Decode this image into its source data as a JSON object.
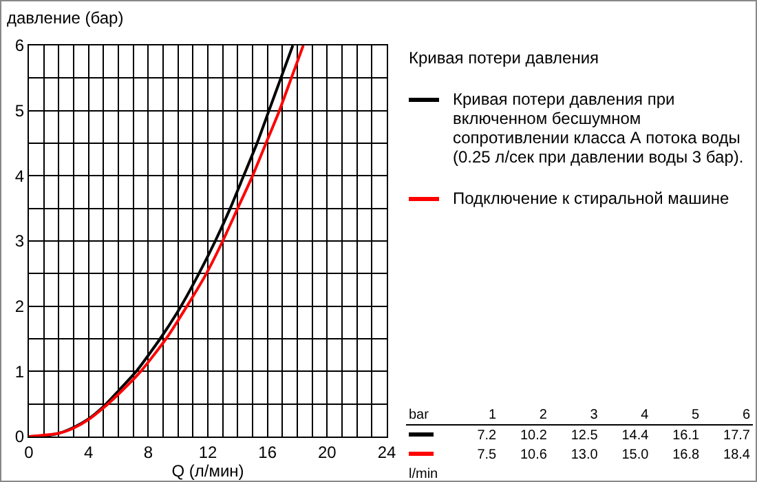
{
  "chart_data": {
    "type": "line",
    "ylabel": "давление (бар)",
    "xlabel": "Q (л/мин)",
    "legend_title": "Кривая потери давления",
    "series": [
      {
        "name": "Кривая потери давления при включенном бесшумном сопротивлении класса А потока воды (0.25 л/сек при давлении воды 3 бар).",
        "color": "#000000",
        "x": [
          0,
          1,
          2,
          3,
          4,
          5,
          6,
          7.2,
          8.8,
          10.2,
          11.4,
          12.5,
          13.5,
          14.4,
          15.3,
          16.1,
          16.9,
          17.7
        ],
        "values": [
          0,
          0.01,
          0.05,
          0.14,
          0.27,
          0.46,
          0.7,
          1,
          1.5,
          2,
          2.5,
          3,
          3.5,
          4,
          4.5,
          5,
          5.5,
          6
        ]
      },
      {
        "name": "Подключение к стиральной машине",
        "color": "#ff0000",
        "x": [
          0,
          2,
          3,
          4,
          5,
          6,
          7.5,
          9.2,
          10.6,
          11.9,
          13.0,
          14.0,
          15.0,
          15.9,
          16.8,
          17.6,
          18.4
        ],
        "values": [
          0,
          0.05,
          0.13,
          0.26,
          0.44,
          0.65,
          1,
          1.5,
          2,
          2.5,
          3,
          3.5,
          4,
          4.5,
          5,
          5.5,
          6
        ]
      }
    ],
    "xlim": [
      0,
      24
    ],
    "xticks": [
      0,
      4,
      8,
      12,
      16,
      20,
      24
    ],
    "ylim": [
      0,
      6
    ],
    "yticks": [
      0,
      1,
      2,
      3,
      4,
      5,
      6
    ],
    "grid": true,
    "legend": "right",
    "marker": "none",
    "line_style": "solid",
    "annotations": [
      "bar",
      "1",
      "2",
      "3",
      "4",
      "5",
      "6",
      "7.2",
      "10.2",
      "12.5",
      "14.4",
      "16.1",
      "17.7",
      "7.5",
      "10.6",
      "13.0",
      "15.0",
      "16.8",
      "18.4",
      "l/min"
    ]
  }
}
